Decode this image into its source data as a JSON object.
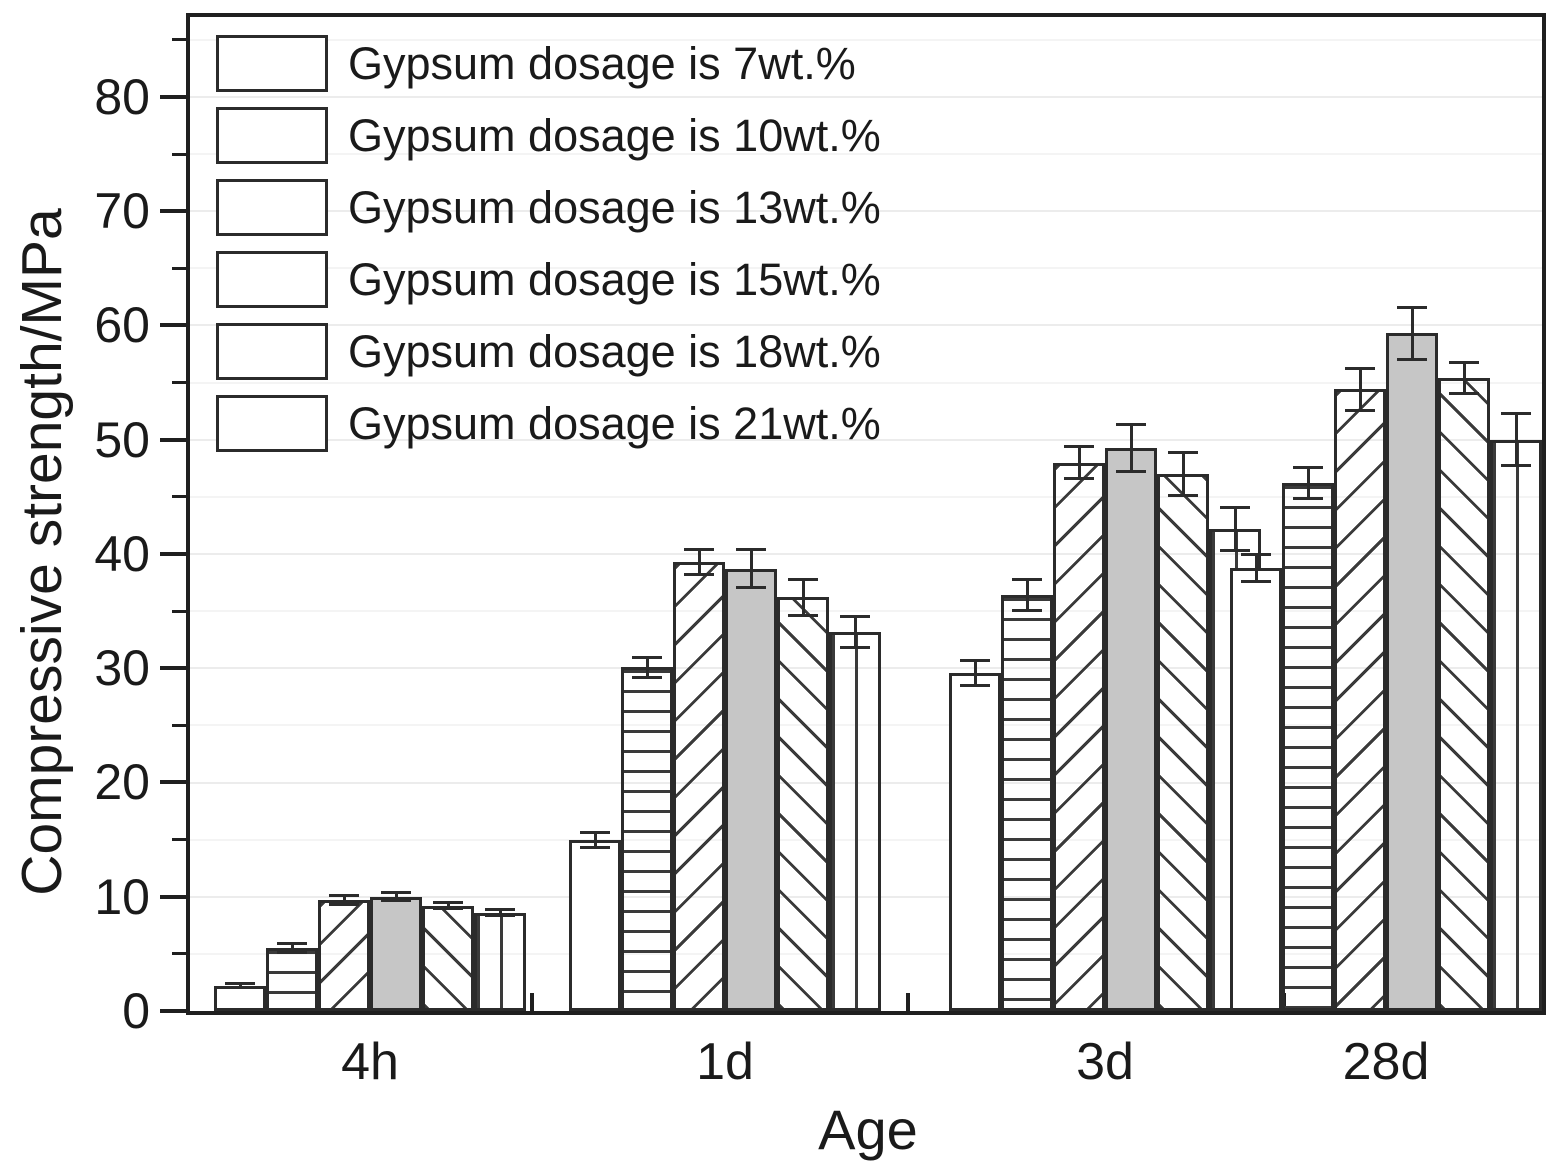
{
  "chart_data": {
    "type": "bar",
    "title": "",
    "xlabel": "Age",
    "ylabel": "Compressive strength/MPa",
    "categories": [
      "4h",
      "1d",
      "3d",
      "28d"
    ],
    "series": [
      {
        "name": "Gypsum dosage is 7wt.%",
        "pattern": "plain",
        "values": [
          2.2,
          15.0,
          29.6,
          38.8
        ],
        "errors": [
          0.3,
          0.8,
          1.2,
          1.3
        ]
      },
      {
        "name": "Gypsum dosage is 10wt.%",
        "pattern": "horizontal",
        "values": [
          5.5,
          30.1,
          36.4,
          46.2
        ],
        "errors": [
          0.5,
          1.0,
          1.5,
          1.5
        ]
      },
      {
        "name": "Gypsum dosage is 13wt.%",
        "pattern": "diagonal-forward",
        "values": [
          9.7,
          39.3,
          48.0,
          54.4
        ],
        "errors": [
          0.5,
          1.2,
          1.5,
          2.0
        ]
      },
      {
        "name": "Gypsum dosage is 15wt.%",
        "pattern": "solid-gray",
        "values": [
          10.0,
          38.7,
          49.3,
          59.3
        ],
        "errors": [
          0.5,
          1.8,
          2.2,
          2.4
        ]
      },
      {
        "name": "Gypsum dosage is 18wt.%",
        "pattern": "diagonal-back",
        "values": [
          9.2,
          36.2,
          47.0,
          55.4
        ],
        "errors": [
          0.4,
          1.7,
          2.0,
          1.5
        ]
      },
      {
        "name": "Gypsum dosage is 21wt.%",
        "pattern": "vertical",
        "values": [
          8.6,
          33.2,
          42.2,
          50.0
        ],
        "errors": [
          0.4,
          1.5,
          2.0,
          2.4
        ]
      }
    ],
    "ylim": [
      0,
      87
    ],
    "yticks_major": [
      0,
      10,
      20,
      30,
      40,
      50,
      60,
      70,
      80
    ],
    "yticks_minor": [
      5,
      15,
      25,
      35,
      45,
      55,
      65,
      75,
      85
    ],
    "grid": "faint horizontal lines",
    "legend_position": "top-left inside plot",
    "error_bars": true
  },
  "colors": {
    "background": "#ffffff",
    "frame": "#1f1f1f",
    "bar_border": "#2b2b2b",
    "bar_gray_fill": "#c6c6c6",
    "gridline": "#ececec",
    "text": "#1a1a1a"
  }
}
